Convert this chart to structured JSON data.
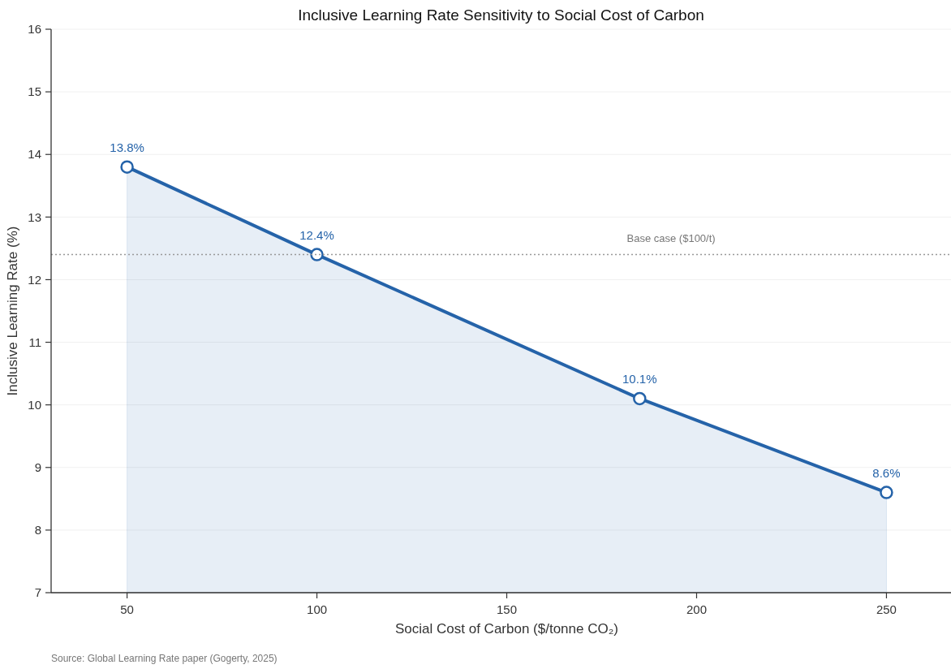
{
  "chart_data": {
    "type": "area",
    "title": "Inclusive Learning Rate Sensitivity to Social Cost of Carbon",
    "xlabel": "Social Cost of Carbon ($/tonne CO₂)",
    "ylabel": "Inclusive Learning Rate (%)",
    "x": [
      50,
      100,
      185,
      250
    ],
    "values": [
      13.8,
      12.4,
      10.1,
      8.6
    ],
    "color": "#2563a9",
    "value_labels": [
      "13.8%",
      "12.4%",
      "10.1%",
      "8.6%"
    ],
    "xlim": [
      30,
      267
    ],
    "xticks": [
      50,
      100,
      150,
      200,
      250
    ],
    "ylim": [
      7,
      16
    ],
    "yticks": [
      7,
      8,
      9,
      10,
      11,
      12,
      13,
      14,
      15,
      16
    ],
    "grid": "y",
    "marker": "circle",
    "ref_lines": [
      {
        "axis": "y",
        "value": 12.4,
        "label": "Base case ($100/t)",
        "color": "#999999",
        "line_style": "dotted"
      }
    ],
    "annotations": [
      "Source: Global Learning Rate paper (Gogerty, 2025)"
    ]
  }
}
